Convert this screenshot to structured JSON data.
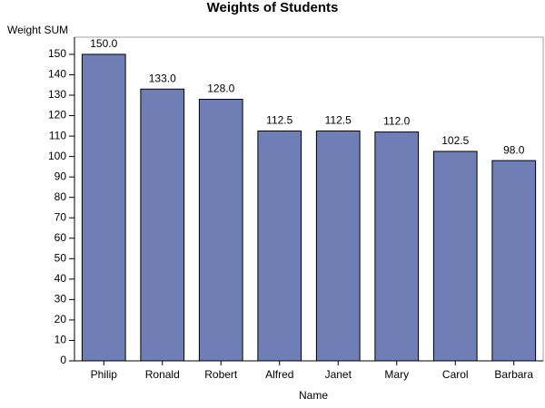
{
  "chart_data": {
    "type": "bar",
    "title": "Weights of Students",
    "x_label": "Name",
    "y_label": "Weight SUM",
    "categories": [
      "Philip",
      "Ronald",
      "Robert",
      "Alfred",
      "Janet",
      "Mary",
      "Carol",
      "Barbara"
    ],
    "values": [
      150,
      133,
      128,
      112.5,
      112.5,
      112,
      102.5,
      98
    ],
    "value_labels": [
      "150.0",
      "133.0",
      "128.0",
      "112.5",
      "112.5",
      "112.0",
      "102.5",
      "98.0"
    ],
    "color": "#6f7eb4",
    "ylim": [
      0,
      158.4
    ],
    "yticks": [
      0,
      10,
      20,
      30,
      40,
      50,
      60,
      70,
      80,
      90,
      100,
      110,
      120,
      130,
      140,
      150
    ]
  }
}
